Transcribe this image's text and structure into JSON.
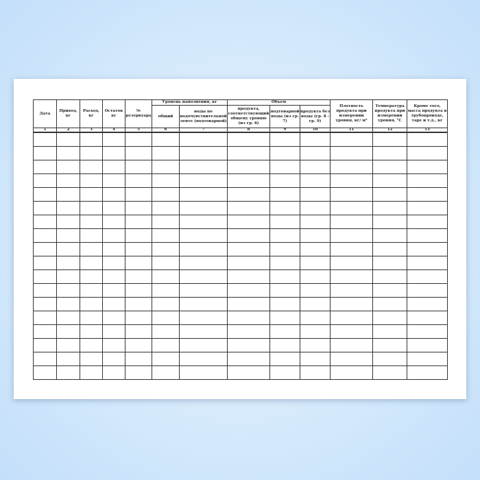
{
  "form": {
    "headers": {
      "date": "Дата",
      "income": "Приход, кг",
      "expense": "Расход, кг",
      "balance": "Остаток кг",
      "tank": "№ резервуара",
      "fill_level_group": "Уровень наполнения, кг",
      "fill_total": "общий",
      "fill_water": "воды по водочувствительной ленте (подтоварной)",
      "volume_group": "Объем",
      "vol_product": "продукта, соответствующий общему уровню (из гр. 6)",
      "vol_water": "подтоварной воды (из гр. 7)",
      "vol_product_no_water": "продукта без воды (гр. 8 - гр. 9)",
      "density": "Плотность продукта при измерении уровня, кг/ м³",
      "temperature": "Температура продукта при измерении уровня, °С",
      "other_mass": "Кроме того, масса продукта в трубопроводе, таре и т.д., кг"
    },
    "column_numbers": [
      "1",
      "2",
      "3",
      "4",
      "5",
      "6",
      "7",
      "8",
      "9",
      "10",
      "11",
      "12",
      "13"
    ],
    "empty_rows": 18
  }
}
